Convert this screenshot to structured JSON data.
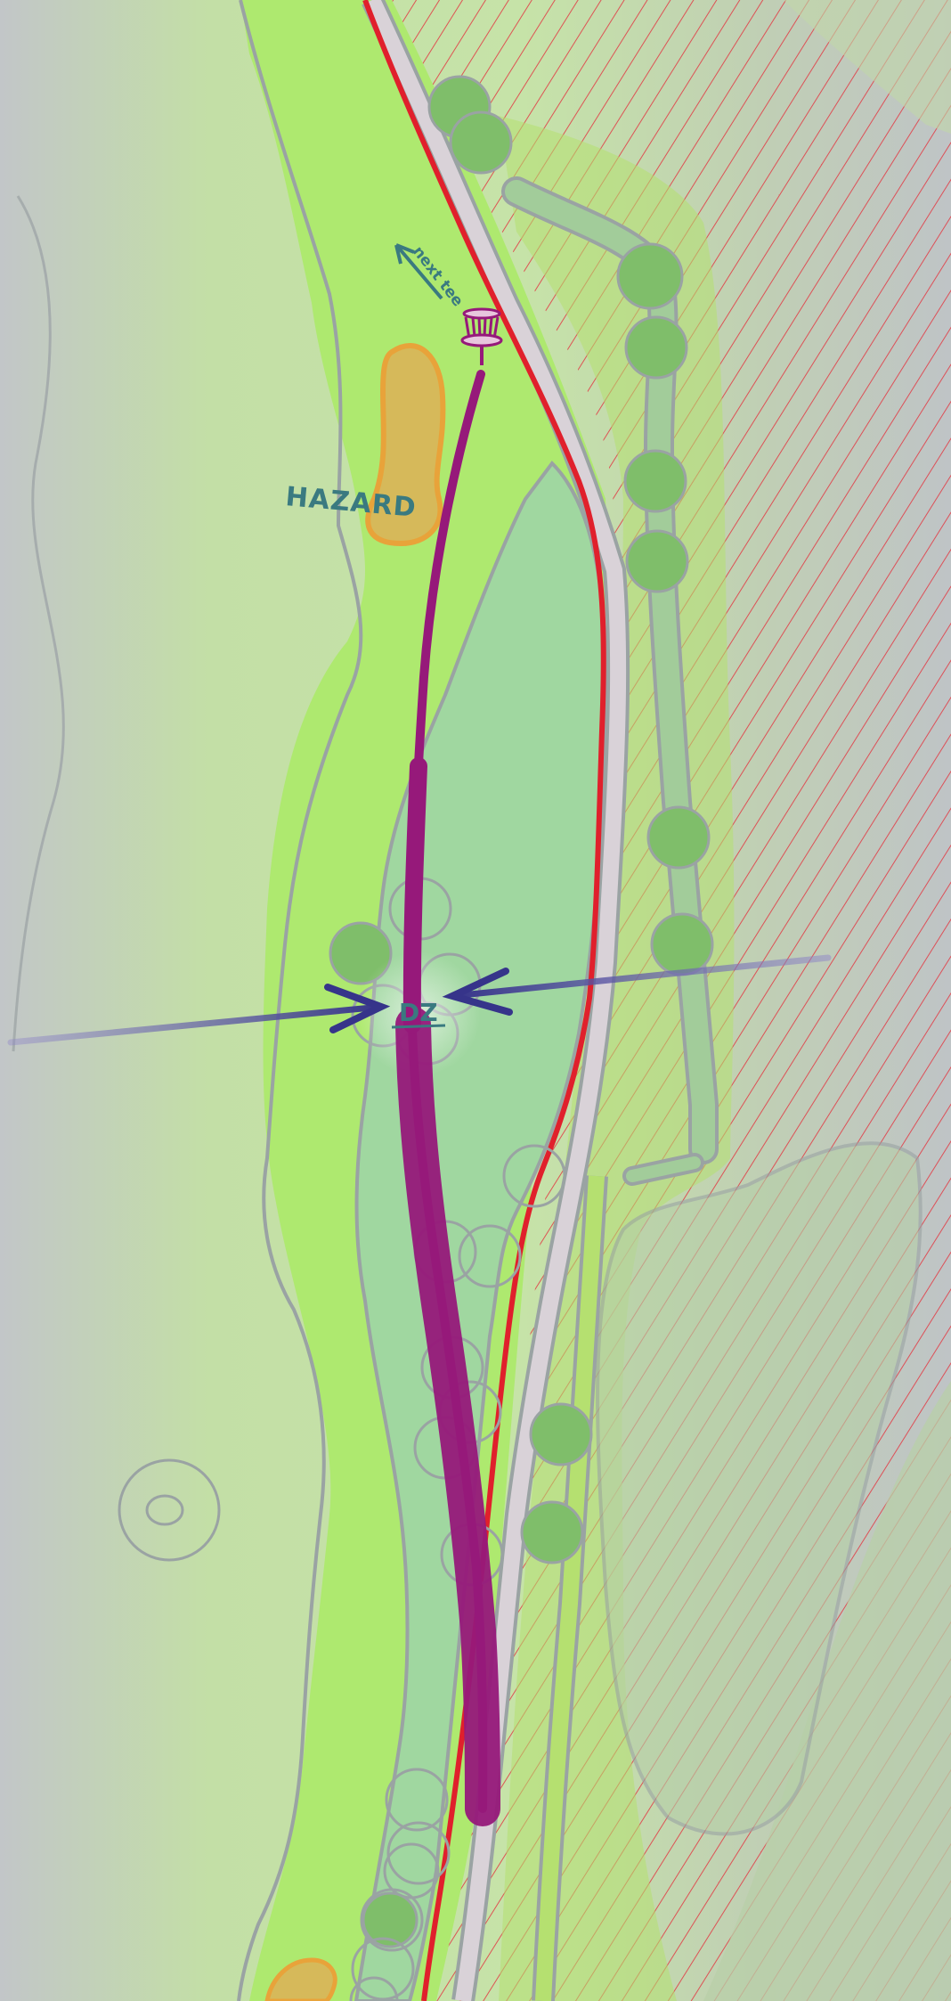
{
  "map": {
    "labels": {
      "hazard": "HAZARD",
      "next_tee": "next tee",
      "drop_zone": "DZ"
    },
    "colors": {
      "rough": "#c3dfa6",
      "fairway": "#aee96f",
      "landing_zone": "#a0d7a0",
      "hazard": "#d6b95a",
      "hazard_outline": "#e8a33a",
      "out_of_bounds": "#e0202c",
      "flight_path": "#96197a",
      "dz_arrow": "#36348a",
      "tree": "#7fbe6a",
      "text": "#3a7a80",
      "outline": "#9aa3a3",
      "path": "#d9d2d8"
    },
    "icons": [
      "basket-icon",
      "next-tee-arrow-icon",
      "dz-arrow-icon"
    ]
  }
}
